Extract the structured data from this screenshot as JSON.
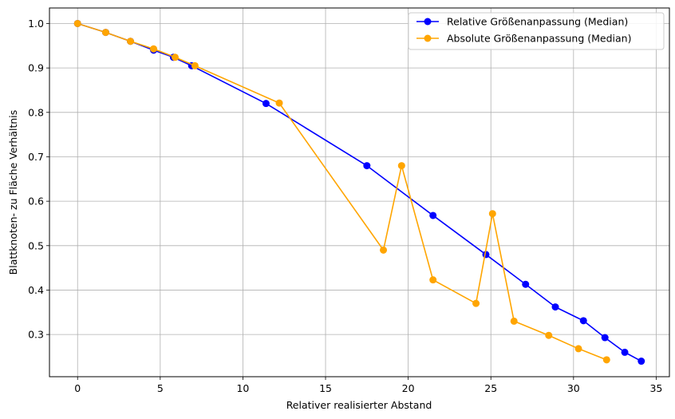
{
  "chart_data": {
    "type": "line",
    "xlabel": "Relativer realisierter Abstand",
    "ylabel": "Blattknoten- zu Fläche Verhältnis",
    "xlim": [
      -1.7,
      35.8
    ],
    "ylim": [
      0.205,
      1.035
    ],
    "xticks": [
      0,
      5,
      10,
      15,
      20,
      25,
      30,
      35
    ],
    "yticks": [
      0.3,
      0.4,
      0.5,
      0.6,
      0.7,
      0.8,
      0.9,
      1.0
    ],
    "xtick_labels": [
      "0",
      "5",
      "10",
      "15",
      "20",
      "25",
      "30",
      "35"
    ],
    "ytick_labels": [
      "0.3",
      "0.4",
      "0.5",
      "0.6",
      "0.7",
      "0.8",
      "0.9",
      "1.0"
    ],
    "grid": true,
    "legend_position": "top-right",
    "series": [
      {
        "name": "Relative Größenanpassung (Median)",
        "color": "#0000ff",
        "marker": "circle",
        "x": [
          0,
          1.7,
          3.2,
          4.6,
          5.8,
          6.9,
          11.4,
          17.5,
          21.5,
          24.7,
          27.1,
          28.9,
          30.6,
          31.9,
          33.1,
          34.1
        ],
        "y": [
          1.0,
          0.98,
          0.96,
          0.94,
          0.924,
          0.905,
          0.82,
          0.68,
          0.568,
          0.48,
          0.413,
          0.362,
          0.331,
          0.293,
          0.26,
          0.24
        ]
      },
      {
        "name": "Absolute Größenanpassung (Median)",
        "color": "#ffa500",
        "marker": "circle",
        "x": [
          0,
          1.7,
          3.2,
          4.6,
          5.9,
          7.1,
          12.2,
          18.5,
          19.6,
          21.5,
          24.1,
          25.1,
          26.4,
          28.5,
          30.3,
          32.0
        ],
        "y": [
          1.0,
          0.98,
          0.96,
          0.943,
          0.924,
          0.905,
          0.821,
          0.49,
          0.68,
          0.423,
          0.37,
          0.572,
          0.33,
          0.298,
          0.268,
          0.243
        ]
      }
    ]
  }
}
